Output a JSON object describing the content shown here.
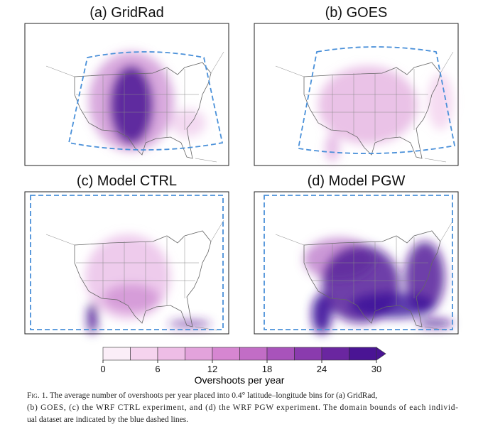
{
  "panels": [
    {
      "title": "(a) GridRad"
    },
    {
      "title": "(b) GOES"
    },
    {
      "title": "(c) Model CTRL"
    },
    {
      "title": "(d) Model PGW"
    }
  ],
  "colorbar": {
    "lim": [
      0,
      30
    ],
    "ticks": [
      0,
      6,
      12,
      18,
      24,
      30
    ],
    "colors": [
      "#fbeef8",
      "#f5d3ee",
      "#eebde6",
      "#e3a3dc",
      "#d686d1",
      "#c26dc6",
      "#a853bb",
      "#8a3bae",
      "#6a26a0",
      "#4a1494"
    ],
    "label": "Overshoots per year"
  },
  "caption": {
    "label": "Fig. 1.",
    "lines": [
      "The average number of overshoots per year placed into 0.4° latitude–longitude bins for (a) GridRad,",
      "(b) GOES, (c) the WRF CTRL experiment, and (d) the WRF PGW experiment. The domain bounds of each individ-",
      "ual dataset are indicated by the blue dashed lines."
    ]
  }
}
